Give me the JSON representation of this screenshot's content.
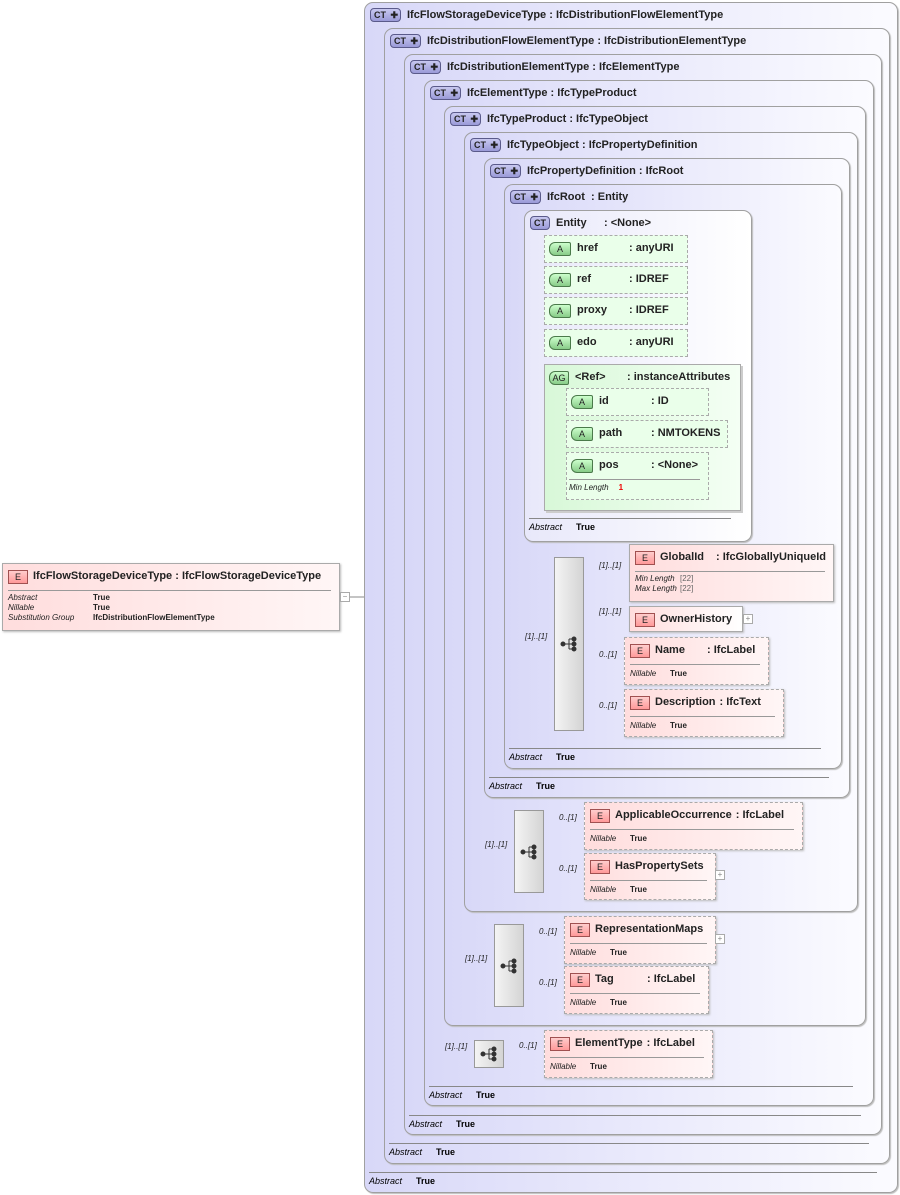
{
  "root": {
    "name": "IfcFlowStorageDeviceType",
    "type": "IfcFlowStorageDeviceType",
    "tag": "E",
    "props": [
      {
        "k": "Abstract",
        "v": "True"
      },
      {
        "k": "Nillable",
        "v": "True"
      },
      {
        "k": "Substitution Group",
        "v": "IfcDistributionFlowElementType"
      }
    ]
  },
  "types": [
    {
      "name": "IfcFlowStorageDeviceType",
      "base": "IfcDistributionFlowElementType",
      "abstract": "True"
    },
    {
      "name": "IfcDistributionFlowElementType",
      "base": "IfcDistributionElementType",
      "abstract": "True"
    },
    {
      "name": "IfcDistributionElementType",
      "base": "IfcElementType",
      "abstract": "True"
    },
    {
      "name": "IfcElementType",
      "base": "IfcTypeProduct",
      "abstract": "True"
    },
    {
      "name": "IfcTypeProduct",
      "base": "IfcTypeObject"
    },
    {
      "name": "IfcTypeObject",
      "base": "IfcPropertyDefinition"
    },
    {
      "name": "IfcPropertyDefinition",
      "base": "IfcRoot",
      "abstract": "True"
    },
    {
      "name": "IfcRoot",
      "base": "Entity",
      "abstract": "True"
    },
    {
      "name": "Entity",
      "base": "<None>",
      "abstract": "True"
    }
  ],
  "ct_tag": "CT",
  "abstract_label": "Abstract",
  "nillable_label": "Nillable",
  "a_tag": "A",
  "ag_tag": "AG",
  "e_tag": "E",
  "attributes": [
    {
      "name": "href",
      "type": ": anyURI"
    },
    {
      "name": "ref",
      "type": ": IDREF"
    },
    {
      "name": "proxy",
      "type": ": IDREF"
    },
    {
      "name": "edo",
      "type": ": anyURI"
    }
  ],
  "attr_group": {
    "name": "<Ref>",
    "type": ": instanceAttributes",
    "attributes": [
      {
        "name": "id",
        "type": ": ID"
      },
      {
        "name": "path",
        "type": ": NMTOKENS"
      },
      {
        "name": "pos",
        "type": ": <None>",
        "facet": "Min Length",
        "facet_value": "1"
      }
    ]
  },
  "elements": [
    {
      "name": "GlobalId",
      "type": ": IfcGloballyUniqueId",
      "card": "[1]..[1]",
      "facets": [
        {
          "k": "Min Length",
          "v": "[22]"
        },
        {
          "k": "Max Length",
          "v": "[22]"
        }
      ]
    },
    {
      "name": "OwnerHistory",
      "card": "[1]..[1]"
    },
    {
      "name": "Name",
      "type": ": IfcLabel",
      "card": "0..[1]",
      "nillable": "True"
    },
    {
      "name": "Description",
      "type": ": IfcText",
      "card": "0..[1]",
      "nillable": "True"
    },
    {
      "name": "ApplicableOccurrence",
      "type": ": IfcLabel",
      "card": "0..[1]",
      "nillable": "True"
    },
    {
      "name": "HasPropertySets",
      "card": "0..[1]",
      "nillable": "True"
    },
    {
      "name": "RepresentationMaps",
      "card": "0..[1]",
      "nillable": "True"
    },
    {
      "name": "Tag",
      "type": ": IfcLabel",
      "card": "0..[1]",
      "nillable": "True"
    },
    {
      "name": "ElementType",
      "type": ": IfcLabel",
      "card": "0..[1]",
      "nillable": "True"
    }
  ],
  "sequences": [
    {
      "card": "[1]..[1]"
    },
    {
      "card": "[1]..[1]"
    },
    {
      "card": "[1]..[1]"
    },
    {
      "card": "[1]..[1]"
    }
  ]
}
